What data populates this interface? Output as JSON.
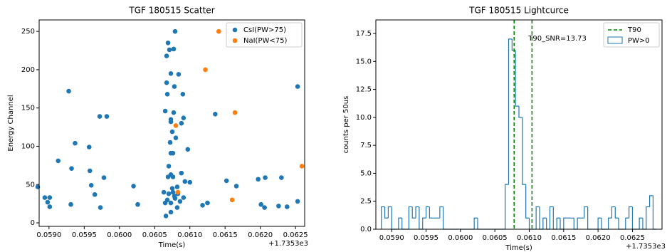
{
  "chart_data": [
    {
      "type": "scatter",
      "title": "TGF 180515 Scatter",
      "xlabel": "Time(s)",
      "ylabel": "Energy Channel",
      "x_offset_label": "+1.7353e3",
      "xlim": [
        0.05886,
        0.06263
      ],
      "ylim": [
        -4.6,
        265
      ],
      "xticks": [
        {
          "value": 0.059,
          "label": "0.0590"
        },
        {
          "value": 0.0595,
          "label": "0.0595"
        },
        {
          "value": 0.06,
          "label": "0.0600"
        },
        {
          "value": 0.0605,
          "label": "0.0605"
        },
        {
          "value": 0.061,
          "label": "0.0610"
        },
        {
          "value": 0.0615,
          "label": "0.0615"
        },
        {
          "value": 0.062,
          "label": "0.0620"
        },
        {
          "value": 0.0625,
          "label": "0.0625"
        }
      ],
      "yticks": [
        0,
        50,
        100,
        150,
        200,
        250
      ],
      "legend": "upper right",
      "series": [
        {
          "name": "CsI(PW>75)",
          "color": "#1f77b4",
          "x": [
            0.05884,
            0.05894,
            0.05898,
            0.05901,
            0.05901,
            0.05913,
            0.05928,
            0.05931,
            0.05932,
            0.05937,
            0.05957,
            0.05958,
            0.0596,
            0.05965,
            0.05972,
            0.05982,
            0.05973,
            0.05978,
            0.0602,
            0.06026,
            0.06079,
            0.06069,
            0.06071,
            0.06067,
            0.06077,
            0.06073,
            0.06084,
            0.06068,
            0.06067,
            0.06078,
            0.0609,
            0.06065,
            0.06077,
            0.06073,
            0.06091,
            0.06088,
            0.06073,
            0.06075,
            0.0608,
            0.06072,
            0.06097,
            0.06073,
            0.06076,
            0.0607,
            0.06073,
            0.06076,
            0.06088,
            0.06093,
            0.061,
            0.0607,
            0.06063,
            0.06065,
            0.06076,
            0.06073,
            0.06082,
            0.06079,
            0.06066,
            0.06073,
            0.06083,
            0.06086,
            0.06091,
            0.06118,
            0.06125,
            0.06136,
            0.06152,
            0.06166,
            0.06197,
            0.06201,
            0.06207,
            0.06206,
            0.06226,
            0.0623,
            0.06238,
            0.06253,
            0.06253,
            0.06068,
            0.06078,
            0.06082,
            0.06075,
            0.06069
          ],
          "values": [
            47,
            33,
            27,
            33,
            21,
            81,
            172,
            24,
            71,
            104,
            99,
            68,
            49,
            37,
            139,
            139,
            20,
            59,
            48,
            24,
            250,
            235,
            226,
            218,
            227,
            195,
            194,
            168,
            183,
            178,
            168,
            146,
            144,
            135,
            137,
            130,
            132,
            119,
            111,
            105,
            96,
            91,
            91,
            74,
            63,
            60,
            65,
            54,
            53,
            38,
            40,
            26,
            40,
            26,
            47,
            32,
            9,
            14,
            38,
            28,
            33,
            23,
            26,
            142,
            55,
            48,
            57,
            24,
            59,
            20,
            22,
            59,
            21,
            178,
            28,
            30,
            35,
            20,
            45,
            60
          ]
        },
        {
          "name": "NaI(PW<75)",
          "color": "#ff7f0e",
          "x": [
            0.06141,
            0.06122,
            0.06164,
            0.0608,
            0.06083,
            0.0616,
            0.06259
          ],
          "values": [
            250,
            200,
            144,
            127,
            40,
            30,
            74
          ]
        }
      ]
    },
    {
      "type": "histogram",
      "title": "TGF 180515 Lightcurce",
      "xlabel": "Time(s)",
      "ylabel": "counts per 50us",
      "x_offset_label": "+1.7353e3",
      "xlim": [
        0.05877,
        0.06293
      ],
      "ylim": [
        0,
        18.71
      ],
      "xticks": [
        {
          "value": 0.059,
          "label": "0.0590"
        },
        {
          "value": 0.0595,
          "label": "0.0595"
        },
        {
          "value": 0.06,
          "label": "0.0600"
        },
        {
          "value": 0.0605,
          "label": "0.0605"
        },
        {
          "value": 0.061,
          "label": "0.0610"
        },
        {
          "value": 0.0615,
          "label": "0.0615"
        },
        {
          "value": 0.062,
          "label": "0.0620"
        },
        {
          "value": 0.0625,
          "label": "0.0625"
        }
      ],
      "yticks": [
        {
          "value": 0,
          "label": "0.0"
        },
        {
          "value": 2.5,
          "label": "2.5"
        },
        {
          "value": 5,
          "label": "5.0"
        },
        {
          "value": 7.5,
          "label": "7.5"
        },
        {
          "value": 10,
          "label": "10.0"
        },
        {
          "value": 12.5,
          "label": "12.5"
        },
        {
          "value": 15,
          "label": "15.0"
        },
        {
          "value": 17.5,
          "label": "17.5"
        }
      ],
      "legend": "upper right",
      "annotation": "T90_SNR=13.73",
      "vlines": {
        "name": "T90",
        "color": "#008000",
        "x": [
          0.06078,
          0.06104
        ]
      },
      "bins": [
        0.05885,
        0.0589,
        0.05895,
        0.059,
        0.05905,
        0.0591,
        0.05915,
        0.0592,
        0.05925,
        0.0593,
        0.05935,
        0.0594,
        0.05945,
        0.0595,
        0.05955,
        0.0596,
        0.05965,
        0.0597,
        0.05975,
        0.0598,
        0.05985,
        0.0599,
        0.05995,
        0.06,
        0.06005,
        0.0601,
        0.06015,
        0.0602,
        0.06025,
        0.0603,
        0.06035,
        0.0604,
        0.06045,
        0.0605,
        0.06055,
        0.0606,
        0.06065,
        0.0607,
        0.06075,
        0.0608,
        0.06085,
        0.0609,
        0.06095,
        0.061,
        0.06105,
        0.0611,
        0.06115,
        0.0612,
        0.06125,
        0.0613,
        0.06135,
        0.0614,
        0.06145,
        0.0615,
        0.06155,
        0.0616,
        0.06165,
        0.0617,
        0.06175,
        0.0618,
        0.06185,
        0.0619,
        0.06195,
        0.062,
        0.06205,
        0.0621,
        0.06215,
        0.0622,
        0.06225,
        0.0623,
        0.06235,
        0.0624,
        0.06245,
        0.0625,
        0.06255,
        0.0626,
        0.06265,
        0.0627,
        0.06275,
        0.0628,
        0.06285
      ],
      "series": [
        {
          "name": "PW>0",
          "color": "#1f77b4",
          "values": [
            2,
            1,
            2,
            0,
            0,
            1,
            0,
            0,
            2,
            1,
            2,
            0,
            1,
            2,
            1,
            1,
            1,
            2,
            0,
            0,
            0,
            0,
            0,
            0,
            0,
            0,
            0,
            1,
            0,
            0,
            0,
            0,
            0,
            0,
            0,
            0,
            4,
            17,
            16,
            11,
            10,
            4,
            1,
            0,
            0,
            2,
            0,
            1,
            0,
            2,
            0,
            1,
            0,
            1,
            1,
            1,
            0,
            1,
            1,
            2,
            0,
            0,
            0,
            1,
            0,
            0,
            1,
            2,
            1,
            0,
            0,
            1,
            2,
            0,
            0,
            1,
            0,
            2,
            3,
            0
          ]
        }
      ]
    }
  ]
}
